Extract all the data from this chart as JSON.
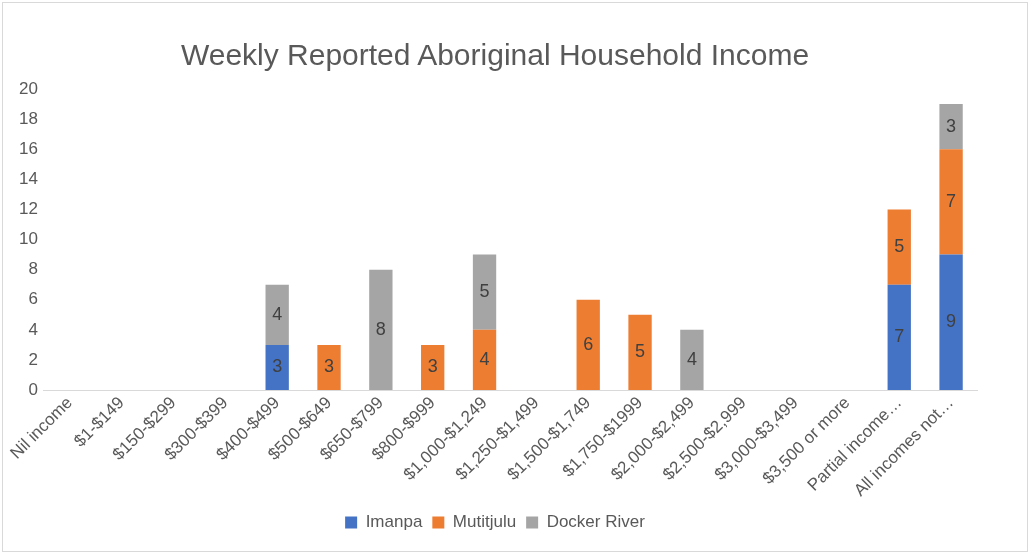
{
  "chart_data": {
    "type": "bar",
    "title": "Weekly Reported Aboriginal Household Income",
    "categories": [
      "Nil income",
      "$1-$149",
      "$150-$299",
      "$300-$399",
      "$400-$499",
      "$500-$649",
      "$650-$799",
      "$800-$999",
      "$1,000-$1,249",
      "$1,250-$1,499",
      "$1,500-$1,749",
      "$1,750-$1999",
      "$2,000-$2,499",
      "$2,500-$2,999",
      "$3,000-$3,499",
      "$3,500 or more",
      "Partial income…",
      "All incomes not…"
    ],
    "series": [
      {
        "name": "Imanpa",
        "color": "#4472c4",
        "values": [
          null,
          null,
          null,
          null,
          3,
          null,
          null,
          null,
          null,
          null,
          null,
          null,
          null,
          null,
          null,
          null,
          7,
          9
        ]
      },
      {
        "name": "Mutitjulu",
        "color": "#ed7d31",
        "values": [
          null,
          null,
          null,
          null,
          null,
          3,
          null,
          3,
          4,
          null,
          6,
          5,
          null,
          null,
          null,
          null,
          5,
          7
        ]
      },
      {
        "name": "Docker River",
        "color": "#a5a5a5",
        "values": [
          null,
          null,
          null,
          null,
          4,
          null,
          8,
          null,
          5,
          null,
          null,
          null,
          4,
          null,
          null,
          null,
          null,
          3
        ]
      }
    ],
    "stacked": true,
    "ylim": [
      0,
      20
    ],
    "yticks": [
      0,
      2,
      4,
      6,
      8,
      10,
      12,
      14,
      16,
      18,
      20
    ],
    "grid": false,
    "legend": "bottom",
    "data_labels": true
  }
}
